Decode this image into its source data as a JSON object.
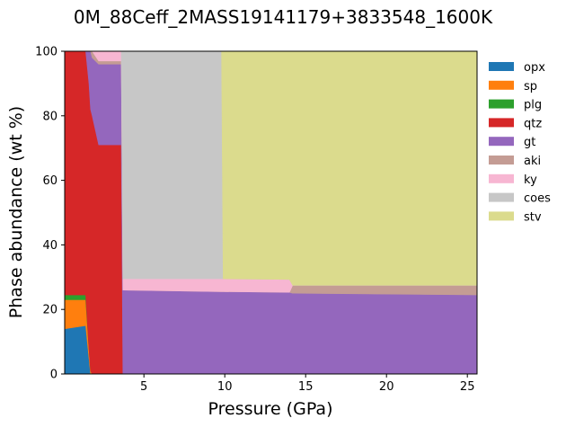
{
  "chart_data": {
    "type": "area",
    "title": "0M_88Ceff_2MASS19141179+3833548_1600K",
    "xlabel": "Pressure (GPa)",
    "ylabel": "Phase abundance (wt %)",
    "xlim": [
      0.1,
      25.6
    ],
    "ylim": [
      0,
      100
    ],
    "xticks": [
      5,
      10,
      15,
      20,
      25
    ],
    "yticks": [
      0,
      20,
      40,
      60,
      80,
      100
    ],
    "grid": false,
    "legend_position": "right, outside plot",
    "x": [
      0.1,
      1.4,
      1.6,
      1.7,
      1.8,
      2.2,
      3.6,
      3.7,
      9.8,
      9.9,
      14.0,
      14.2,
      25.6
    ],
    "series": [
      {
        "name": "opx",
        "color": "#1f77b4",
        "values": [
          14,
          15,
          5,
          0,
          0,
          0,
          0,
          0,
          0,
          0,
          0,
          0,
          0
        ]
      },
      {
        "name": "sp",
        "color": "#ff7f0e",
        "values": [
          9,
          8,
          3,
          1,
          0,
          0,
          0,
          0,
          0,
          0,
          0,
          0,
          0
        ]
      },
      {
        "name": "plg",
        "color": "#2ca02c",
        "values": [
          1.5,
          1.5,
          0,
          0,
          0,
          0,
          0,
          0,
          0,
          0,
          0,
          0,
          0
        ]
      },
      {
        "name": "qtz",
        "color": "#d62728",
        "values": [
          75.5,
          75.5,
          82,
          81,
          80,
          71,
          71,
          0,
          0,
          0,
          0,
          0,
          0
        ]
      },
      {
        "name": "gt",
        "color": "#9467bd",
        "values": [
          0,
          0,
          10,
          18,
          18,
          25,
          25,
          26,
          25.5,
          25.5,
          25.3,
          25,
          24.5
        ]
      },
      {
        "name": "aki",
        "color": "#c49c94",
        "values": [
          0,
          0,
          0,
          0,
          2,
          1,
          1,
          0,
          0,
          0,
          0,
          2.5,
          3
        ]
      },
      {
        "name": "ky",
        "color": "#f7b6d2",
        "values": [
          0,
          0,
          0,
          0,
          0,
          3,
          3,
          3.5,
          4,
          4,
          4,
          0,
          0
        ]
      },
      {
        "name": "coes",
        "color": "#c7c7c7",
        "values": [
          0,
          0,
          0,
          0,
          0,
          0,
          0,
          70.5,
          70.5,
          0,
          0,
          0,
          0
        ]
      },
      {
        "name": "stv",
        "color": "#dbdb8d",
        "values": [
          0,
          0,
          0,
          0,
          0,
          0,
          0,
          0,
          0,
          70.5,
          70.7,
          72.5,
          72.5
        ]
      }
    ]
  }
}
